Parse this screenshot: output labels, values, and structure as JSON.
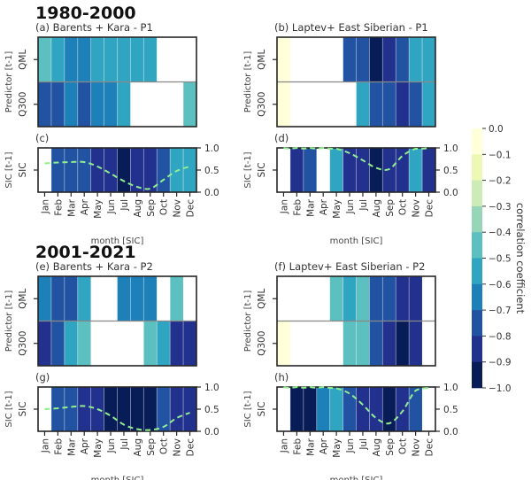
{
  "chart_data": {
    "type": "heatmap",
    "periods": [
      "1980-2000",
      "2001-2021"
    ],
    "months": [
      "Jan",
      "Feb",
      "Mar",
      "Apr",
      "May",
      "Jun",
      "Jul",
      "Aug",
      "Sep",
      "Oct",
      "Nov",
      "Dec"
    ],
    "predictor_rows": [
      "QML",
      "Q300"
    ],
    "sic_row": [
      "SIC"
    ],
    "predictor_ylabel": "Predictor [t-1]",
    "sic_ylabel": "SIC [t-1]",
    "xlabel": "month [SIC]",
    "sic_axis_ticks": [
      "0.0",
      "0.5",
      "1.0"
    ],
    "sic_axis_range": [
      0,
      1
    ],
    "colorbar": {
      "label": "correlation coefficient",
      "range": [
        -1.0,
        0.0
      ],
      "ticks": [
        "0.0",
        "−0.1",
        "−0.2",
        "−0.3",
        "−0.4",
        "−0.5",
        "−0.6",
        "−0.7",
        "−0.8",
        "−0.9",
        "−1.0"
      ],
      "colors": [
        "#ffffd9",
        "#eef8b5",
        "#cdebb6",
        "#97d5b9",
        "#5cbfc0",
        "#30a5c2",
        "#1e80b8",
        "#2253a2",
        "#22308e",
        "#081d58"
      ],
      "colormap": "YlGnBu_r (binned, 0.1 steps)"
    },
    "panels": [
      {
        "id": "a",
        "title": "(a) Barents + Kara - P1",
        "period": 0,
        "kind": "predictor",
        "values": [
          [
            -0.45,
            -0.55,
            -0.65,
            -0.65,
            -0.55,
            -0.55,
            -0.55,
            -0.55,
            -0.55,
            null,
            null,
            null
          ],
          [
            -0.75,
            -0.75,
            -0.65,
            -0.75,
            -0.65,
            -0.65,
            -0.55,
            null,
            null,
            null,
            null,
            -0.45
          ]
        ]
      },
      {
        "id": "b",
        "title": "(b) Laptev+ East Siberian - P1",
        "period": 0,
        "kind": "predictor",
        "values": [
          [
            -0.05,
            null,
            null,
            null,
            null,
            -0.75,
            -0.75,
            -0.95,
            -0.85,
            -0.75,
            -0.55,
            -0.55
          ],
          [
            -0.05,
            null,
            null,
            null,
            null,
            null,
            -0.55,
            -0.75,
            -0.75,
            -0.85,
            -0.75,
            -0.55
          ]
        ]
      },
      {
        "id": "c",
        "title": "(c)",
        "period": 0,
        "kind": "sic",
        "values": [
          [
            null,
            -0.75,
            -0.75,
            -0.75,
            -0.85,
            -0.85,
            -0.95,
            -0.85,
            -0.85,
            -0.75,
            -0.55,
            -0.55
          ]
        ],
        "mean_sic": [
          0.65,
          0.67,
          0.68,
          0.68,
          0.58,
          0.42,
          0.25,
          0.12,
          0.08,
          0.28,
          0.48,
          0.58
        ]
      },
      {
        "id": "d",
        "title": "(d)",
        "period": 0,
        "kind": "sic",
        "values": [
          [
            null,
            -0.85,
            -0.75,
            null,
            -0.55,
            -0.85,
            -0.85,
            -0.95,
            -0.85,
            -0.85,
            -0.55,
            -0.85
          ]
        ],
        "mean_sic": [
          1.0,
          1.0,
          1.0,
          1.0,
          0.98,
          0.88,
          0.72,
          0.55,
          0.52,
          0.82,
          0.98,
          1.0
        ]
      },
      {
        "id": "e",
        "title": "(e) Barents + Kara - P2",
        "period": 1,
        "kind": "predictor",
        "values": [
          [
            -0.65,
            -0.75,
            -0.75,
            -0.55,
            null,
            null,
            -0.65,
            -0.65,
            -0.65,
            null,
            -0.45,
            null
          ],
          [
            -0.85,
            -0.75,
            -0.55,
            -0.45,
            null,
            null,
            null,
            null,
            -0.45,
            -0.55,
            -0.85,
            -0.85
          ]
        ]
      },
      {
        "id": "f",
        "title": "(f) Laptev+ East Siberian - P2",
        "period": 1,
        "kind": "predictor",
        "values": [
          [
            null,
            null,
            null,
            null,
            -0.45,
            -0.55,
            -0.45,
            -0.75,
            -0.75,
            -0.85,
            -0.85,
            null
          ],
          [
            -0.05,
            null,
            null,
            null,
            null,
            -0.45,
            -0.45,
            -0.75,
            -0.85,
            -0.95,
            -0.85,
            null
          ]
        ]
      },
      {
        "id": "g",
        "title": "(g)",
        "period": 1,
        "kind": "sic",
        "values": [
          [
            null,
            -0.75,
            -0.75,
            -0.85,
            -0.85,
            -0.95,
            -0.95,
            -0.95,
            -0.95,
            -0.75,
            -0.85,
            -0.85
          ]
        ],
        "mean_sic": [
          0.5,
          0.52,
          0.55,
          0.57,
          0.5,
          0.35,
          0.15,
          0.05,
          0.03,
          0.1,
          0.3,
          0.42
        ]
      },
      {
        "id": "h",
        "title": "(h)",
        "period": 1,
        "kind": "sic",
        "values": [
          [
            null,
            -0.95,
            -0.95,
            -0.65,
            -0.55,
            -0.75,
            -0.85,
            -0.85,
            -0.95,
            -0.85,
            -0.75,
            null
          ]
        ],
        "mean_sic": [
          1.0,
          1.0,
          1.0,
          1.0,
          0.97,
          0.85,
          0.6,
          0.3,
          0.18,
          0.45,
          0.92,
          0.98
        ]
      }
    ],
    "line_style": {
      "color": "#90ee90",
      "dash": "dashed",
      "meaning": "mean SIC (right axis)"
    }
  }
}
